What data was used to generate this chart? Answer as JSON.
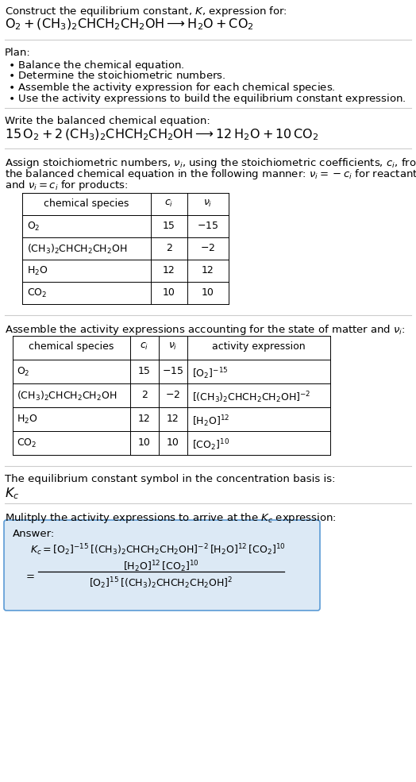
{
  "bg_color": "#ffffff",
  "text_color": "#000000",
  "fig_width": 5.24,
  "fig_height": 9.85,
  "dpi": 100,
  "sections": {
    "title1": "Construct the equilibrium constant, $K$, expression for:",
    "title2": "$\\mathrm{O_2 + (CH_3)_2CHCH_2CH_2OH \\longrightarrow H_2O + CO_2}$",
    "plan_header": "Plan:",
    "plan_bullets": [
      "$\\bullet$ Balance the chemical equation.",
      "$\\bullet$ Determine the stoichiometric numbers.",
      "$\\bullet$ Assemble the activity expression for each chemical species.",
      "$\\bullet$ Use the activity expressions to build the equilibrium constant expression."
    ],
    "balanced_header": "Write the balanced chemical equation:",
    "balanced_eq": "$15\\,\\mathrm{O_2} + 2\\,(\\mathrm{CH_3})_2\\mathrm{CHCH_2CH_2OH} \\longrightarrow 12\\,\\mathrm{H_2O} + 10\\,\\mathrm{CO_2}$",
    "stoich_text_lines": [
      "Assign stoichiometric numbers, $\\nu_i$, using the stoichiometric coefficients, $c_i$, from",
      "the balanced chemical equation in the following manner: $\\nu_i = -c_i$ for reactants",
      "and $\\nu_i = c_i$ for products:"
    ],
    "activity_text": "Assemble the activity expressions accounting for the state of matter and $\\nu_i$:",
    "kc_text": "The equilibrium constant symbol in the concentration basis is:",
    "kc_symbol": "$K_c$",
    "multiply_text": "Mulitply the activity expressions to arrive at the $K_c$ expression:",
    "answer_label": "Answer:",
    "answer_box_color": "#dce9f5",
    "answer_box_edge": "#5b9bd5"
  },
  "table1": {
    "headers": [
      "chemical species",
      "$c_i$",
      "$\\nu_i$"
    ],
    "rows": [
      [
        "$\\mathrm{O_2}$",
        "15",
        "$-15$"
      ],
      [
        "$(\\mathrm{CH_3})_2\\mathrm{CHCH_2CH_2OH}$",
        "2",
        "$-2$"
      ],
      [
        "$\\mathrm{H_2O}$",
        "12",
        "12"
      ],
      [
        "$\\mathrm{CO_2}$",
        "10",
        "10"
      ]
    ]
  },
  "table2": {
    "headers": [
      "chemical species",
      "$c_i$",
      "$\\nu_i$",
      "activity expression"
    ],
    "rows": [
      [
        "$\\mathrm{O_2}$",
        "15",
        "$-15$",
        "$[\\mathrm{O_2}]^{-15}$"
      ],
      [
        "$(\\mathrm{CH_3})_2\\mathrm{CHCH_2CH_2OH}$",
        "2",
        "$-2$",
        "$[(\\mathrm{CH_3})_2\\mathrm{CHCH_2CH_2OH}]^{-2}$"
      ],
      [
        "$\\mathrm{H_2O}$",
        "12",
        "12",
        "$[\\mathrm{H_2O}]^{12}$"
      ],
      [
        "$\\mathrm{CO_2}$",
        "10",
        "10",
        "$[\\mathrm{CO_2}]^{10}$"
      ]
    ]
  }
}
